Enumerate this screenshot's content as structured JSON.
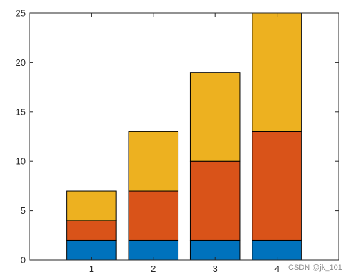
{
  "watermark": "CSDN @jk_101",
  "chart_data": {
    "type": "bar",
    "stacked": true,
    "categories": [
      "1",
      "2",
      "3",
      "4"
    ],
    "series": [
      {
        "values": [
          2,
          2,
          2,
          2
        ],
        "color": "#0072BD"
      },
      {
        "values": [
          2,
          5,
          8,
          11
        ],
        "color": "#D95319"
      },
      {
        "values": [
          3,
          6,
          9,
          12
        ],
        "color": "#EDB120"
      }
    ],
    "xlim": [
      0,
      5
    ],
    "ylim": [
      0,
      25
    ],
    "yticks": [
      0,
      5,
      10,
      15,
      20,
      25
    ],
    "xticks": [
      1,
      2,
      3,
      4
    ],
    "bar_width": 0.8,
    "grid": false,
    "legend": "none",
    "title": "",
    "xlabel": "",
    "ylabel": ""
  }
}
